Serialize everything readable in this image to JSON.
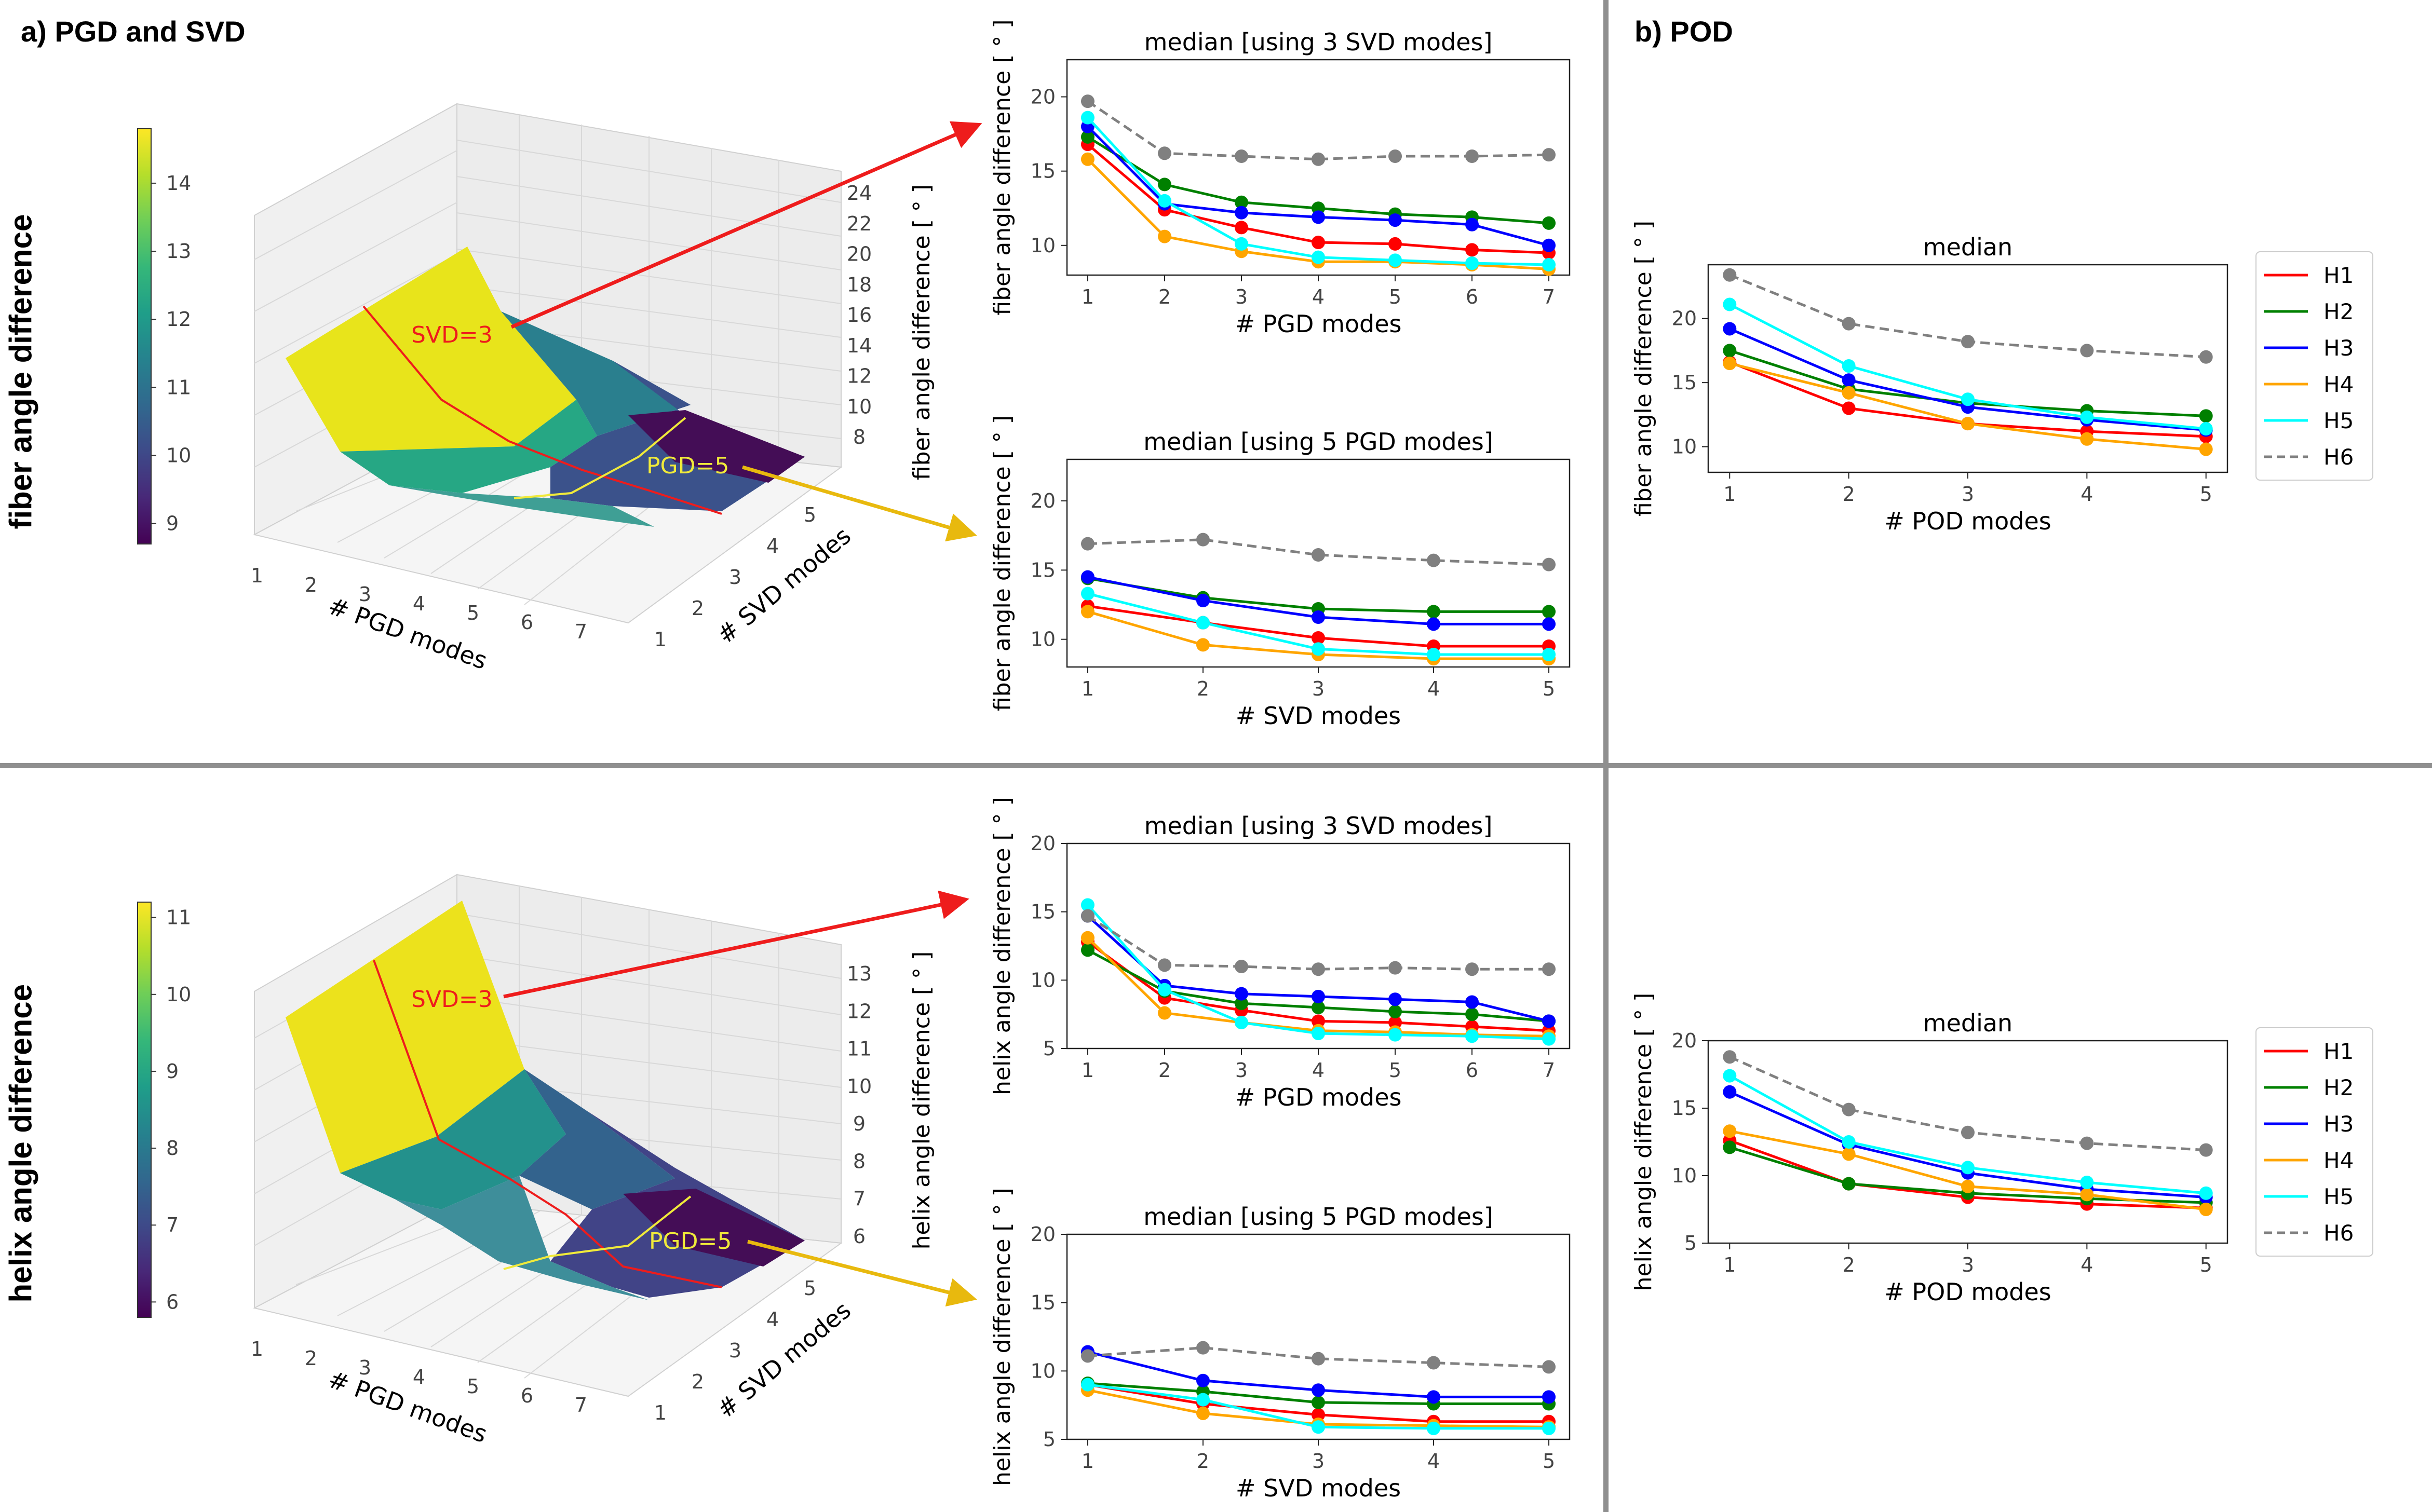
{
  "panel_titles": {
    "a": "a) PGD and SVD",
    "b": "b) POD"
  },
  "row_labels": {
    "fiber": "fiber angle difference",
    "helix": "helix angle difference"
  },
  "colors": {
    "H1": "#ff0000",
    "H2": "#008000",
    "H3": "#0000ff",
    "H4": "#ffa500",
    "H5": "#00ffff",
    "H6": "#808080",
    "red_arrow": "#ee1c1c",
    "yellow_arrow": "#e8b90e"
  },
  "annotations": {
    "svd3": "SVD=3",
    "pgd5": "PGD=5"
  },
  "surfaces": [
    {
      "id": "fiber",
      "zlabel": "fiber angle difference [ ° ]",
      "xlabel": "# PGD modes",
      "ylabel": "# SVD modes",
      "xticks": [
        "1",
        "2",
        "3",
        "4",
        "5",
        "6",
        "7"
      ],
      "yticks": [
        "1",
        "2",
        "3",
        "4",
        "5"
      ],
      "zticks": [
        "8",
        "10",
        "12",
        "14",
        "16",
        "18",
        "20",
        "22",
        "24"
      ],
      "colorbar": {
        "ticks": [
          "9",
          "10",
          "11",
          "12",
          "13",
          "14"
        ],
        "min": 8.7,
        "max": 14.8
      }
    },
    {
      "id": "helix",
      "zlabel": "helix angle difference [ ° ]",
      "xlabel": "# PGD modes",
      "ylabel": "# SVD modes",
      "xticks": [
        "1",
        "2",
        "3",
        "4",
        "5",
        "6",
        "7"
      ],
      "yticks": [
        "1",
        "2",
        "3",
        "4",
        "5"
      ],
      "zticks": [
        "6",
        "7",
        "8",
        "9",
        "10",
        "11",
        "12",
        "13"
      ],
      "colorbar": {
        "ticks": [
          "6",
          "7",
          "8",
          "9",
          "10",
          "11"
        ],
        "min": 5.8,
        "max": 11.2
      }
    }
  ],
  "chart_data": [
    {
      "id": "fiber-pgd",
      "type": "line",
      "title": "median [using 3 SVD modes]",
      "xlabel": "# PGD modes",
      "ylabel": "fiber angle difference [ ° ]",
      "x": [
        1,
        2,
        3,
        4,
        5,
        6,
        7
      ],
      "xticks": [
        1,
        2,
        3,
        4,
        5,
        6,
        7
      ],
      "ylim": [
        8,
        22.5
      ],
      "yticks": [
        10,
        15,
        20
      ],
      "series": [
        {
          "name": "H1",
          "values": [
            16.8,
            12.4,
            11.2,
            10.2,
            10.1,
            9.7,
            9.5
          ]
        },
        {
          "name": "H2",
          "values": [
            17.3,
            14.1,
            12.9,
            12.5,
            12.1,
            11.9,
            11.5
          ]
        },
        {
          "name": "H3",
          "values": [
            18.0,
            12.8,
            12.2,
            11.9,
            11.7,
            11.4,
            10.0
          ]
        },
        {
          "name": "H4",
          "values": [
            15.8,
            10.6,
            9.6,
            8.9,
            8.9,
            8.7,
            8.4
          ]
        },
        {
          "name": "H5",
          "values": [
            18.6,
            13.0,
            10.1,
            9.2,
            9.0,
            8.8,
            8.7
          ]
        },
        {
          "name": "H6",
          "values": [
            19.7,
            16.2,
            16.0,
            15.8,
            16.0,
            16.0,
            16.1
          ]
        }
      ]
    },
    {
      "id": "fiber-svd",
      "type": "line",
      "title": "median [using 5 PGD modes]",
      "xlabel": "# SVD modes",
      "ylabel": "fiber angle difference [ ° ]",
      "x": [
        1,
        2,
        3,
        4,
        5
      ],
      "xticks": [
        1,
        2,
        3,
        4,
        5
      ],
      "ylim": [
        8,
        23
      ],
      "yticks": [
        10,
        15,
        20
      ],
      "series": [
        {
          "name": "H1",
          "values": [
            12.4,
            11.2,
            10.1,
            9.5,
            9.5
          ]
        },
        {
          "name": "H2",
          "values": [
            14.4,
            13.0,
            12.2,
            12.0,
            12.0
          ]
        },
        {
          "name": "H3",
          "values": [
            14.5,
            12.8,
            11.6,
            11.1,
            11.1
          ]
        },
        {
          "name": "H4",
          "values": [
            12.0,
            9.6,
            8.9,
            8.6,
            8.6
          ]
        },
        {
          "name": "H5",
          "values": [
            13.3,
            11.2,
            9.3,
            8.9,
            8.9
          ]
        },
        {
          "name": "H6",
          "values": [
            16.9,
            17.2,
            16.1,
            15.7,
            15.4
          ]
        }
      ]
    },
    {
      "id": "fiber-pod",
      "type": "line",
      "title": "median",
      "xlabel": "# POD modes",
      "ylabel": "fiber angle difference [ ° ]",
      "x": [
        1,
        2,
        3,
        4,
        5
      ],
      "xticks": [
        1,
        2,
        3,
        4,
        5
      ],
      "ylim": [
        8,
        24.2
      ],
      "yticks": [
        10,
        15,
        20
      ],
      "legend": "outside-right",
      "series": [
        {
          "name": "H1",
          "values": [
            16.6,
            13.0,
            11.8,
            11.2,
            10.8
          ]
        },
        {
          "name": "H2",
          "values": [
            17.5,
            14.5,
            13.4,
            12.8,
            12.4
          ]
        },
        {
          "name": "H3",
          "values": [
            19.2,
            15.2,
            13.1,
            12.1,
            11.3
          ]
        },
        {
          "name": "H4",
          "values": [
            16.5,
            14.2,
            11.8,
            10.6,
            9.8
          ]
        },
        {
          "name": "H5",
          "values": [
            21.1,
            16.3,
            13.7,
            12.3,
            11.4
          ]
        },
        {
          "name": "H6",
          "values": [
            23.4,
            19.6,
            18.2,
            17.5,
            17.0
          ]
        }
      ]
    },
    {
      "id": "helix-pgd",
      "type": "line",
      "title": "median [using 3 SVD modes]",
      "xlabel": "# PGD modes",
      "ylabel": "helix angle difference [ ° ]",
      "x": [
        1,
        2,
        3,
        4,
        5,
        6,
        7
      ],
      "xticks": [
        1,
        2,
        3,
        4,
        5,
        6,
        7
      ],
      "ylim": [
        5,
        20
      ],
      "yticks": [
        5,
        10,
        15,
        20
      ],
      "series": [
        {
          "name": "H1",
          "values": [
            12.8,
            8.7,
            7.8,
            7.0,
            6.9,
            6.6,
            6.3
          ]
        },
        {
          "name": "H2",
          "values": [
            12.2,
            9.2,
            8.3,
            8.0,
            7.7,
            7.5,
            7.0
          ]
        },
        {
          "name": "H3",
          "values": [
            14.7,
            9.6,
            9.0,
            8.8,
            8.6,
            8.4,
            7.0
          ]
        },
        {
          "name": "H4",
          "values": [
            13.1,
            7.6,
            6.9,
            6.3,
            6.2,
            6.0,
            5.9
          ]
        },
        {
          "name": "H5",
          "values": [
            15.5,
            9.3,
            6.9,
            6.1,
            6.0,
            5.9,
            5.7
          ]
        },
        {
          "name": "H6",
          "values": [
            14.7,
            11.1,
            11.0,
            10.8,
            10.9,
            10.8,
            10.8
          ]
        }
      ]
    },
    {
      "id": "helix-svd",
      "type": "line",
      "title": "median [using 5 PGD modes]",
      "xlabel": "# SVD modes",
      "ylabel": "helix angle difference [ ° ]",
      "x": [
        1,
        2,
        3,
        4,
        5
      ],
      "xticks": [
        1,
        2,
        3,
        4,
        5
      ],
      "ylim": [
        5,
        20
      ],
      "yticks": [
        5,
        10,
        15,
        20
      ],
      "series": [
        {
          "name": "H1",
          "values": [
            9.0,
            7.6,
            6.8,
            6.3,
            6.3
          ]
        },
        {
          "name": "H2",
          "values": [
            9.1,
            8.5,
            7.7,
            7.6,
            7.6
          ]
        },
        {
          "name": "H3",
          "values": [
            11.4,
            9.3,
            8.6,
            8.1,
            8.1
          ]
        },
        {
          "name": "H4",
          "values": [
            8.6,
            6.9,
            6.1,
            6.0,
            5.9
          ]
        },
        {
          "name": "H5",
          "values": [
            9.0,
            7.9,
            5.9,
            5.8,
            5.8
          ]
        },
        {
          "name": "H6",
          "values": [
            11.1,
            11.7,
            10.9,
            10.6,
            10.3
          ]
        }
      ]
    },
    {
      "id": "helix-pod",
      "type": "line",
      "title": "median",
      "xlabel": "# POD modes",
      "ylabel": "helix angle difference [ ° ]",
      "x": [
        1,
        2,
        3,
        4,
        5
      ],
      "xticks": [
        1,
        2,
        3,
        4,
        5
      ],
      "ylim": [
        5,
        20
      ],
      "yticks": [
        5,
        10,
        15,
        20
      ],
      "legend": "outside-right",
      "series": [
        {
          "name": "H1",
          "values": [
            12.6,
            9.4,
            8.4,
            7.9,
            7.6
          ]
        },
        {
          "name": "H2",
          "values": [
            12.1,
            9.4,
            8.7,
            8.3,
            8.0
          ]
        },
        {
          "name": "H3",
          "values": [
            16.2,
            12.3,
            10.2,
            9.0,
            8.4
          ]
        },
        {
          "name": "H4",
          "values": [
            13.3,
            11.6,
            9.2,
            8.6,
            7.5
          ]
        },
        {
          "name": "H5",
          "values": [
            17.4,
            12.5,
            10.6,
            9.5,
            8.7
          ]
        },
        {
          "name": "H6",
          "values": [
            18.8,
            14.9,
            13.2,
            12.4,
            11.9
          ]
        }
      ]
    }
  ]
}
